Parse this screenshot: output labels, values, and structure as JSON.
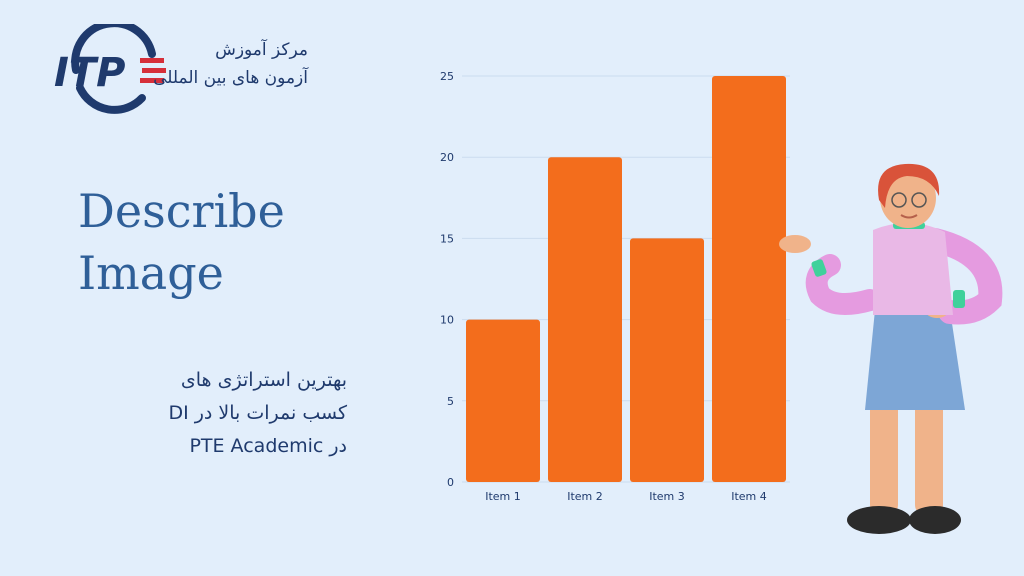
{
  "brand": {
    "logo_text": "ITP",
    "line1": "مرکز آموزش",
    "line2": "آزمون های بین المللی"
  },
  "headline": {
    "line1": "Describe",
    "line2": "Image"
  },
  "subtitle": {
    "line1": "بهترین استراتژی های",
    "line2": "کسب نمرات بالا در DI",
    "line3": "در PTE Academic"
  },
  "colors": {
    "background": "#e2eefb",
    "bar": "#f36d1c",
    "brand_navy": "#1f3a6d",
    "title_blue": "#2f5f98",
    "logo_red": "#d62f3a"
  },
  "chart_data": {
    "type": "bar",
    "categories": [
      "Item 1",
      "Item 2",
      "Item 3",
      "Item 4"
    ],
    "values": [
      10,
      20,
      15,
      25
    ],
    "title": "",
    "xlabel": "",
    "ylabel": "",
    "ylim": [
      0,
      25
    ],
    "yticks": [
      0,
      5,
      10,
      15,
      20,
      25
    ],
    "grid": true,
    "legend": "none"
  }
}
